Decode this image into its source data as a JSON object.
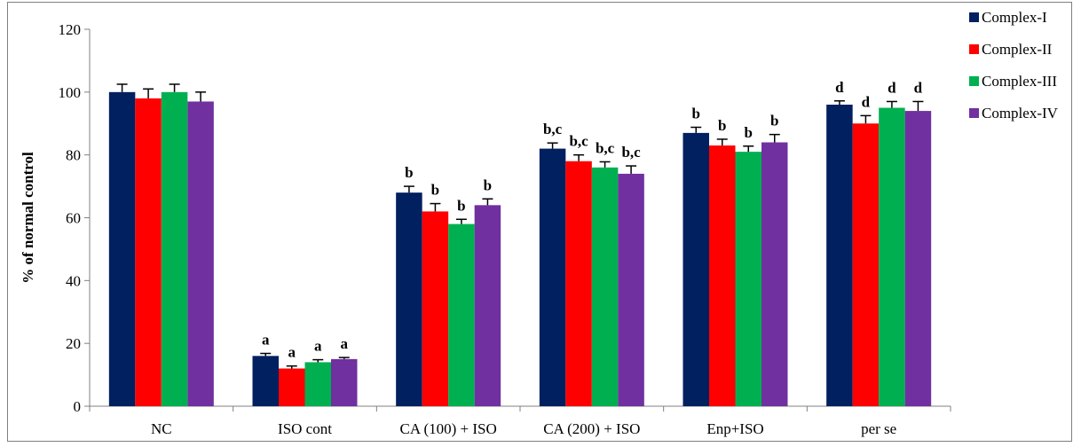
{
  "chart_data": {
    "type": "bar",
    "title": "",
    "xlabel": "",
    "ylabel": "% of normal control",
    "ylim": [
      0,
      120
    ],
    "yticks": [
      0,
      20,
      40,
      60,
      80,
      100,
      120
    ],
    "grid": false,
    "legend_position": "top-right",
    "categories": [
      "NC",
      "ISO cont",
      "CA (100) + ISO",
      "CA (200) + ISO",
      "Enp+ISO",
      "per se"
    ],
    "series": [
      {
        "name": "Complex-I",
        "color": "#002060",
        "values": [
          100,
          16,
          68,
          82,
          87,
          96
        ],
        "errors": [
          2.5,
          0.8,
          2.0,
          1.8,
          1.8,
          1.2
        ],
        "annotations": [
          "",
          "a",
          "b",
          "b,c",
          "b",
          "d"
        ]
      },
      {
        "name": "Complex-II",
        "color": "#ff0000",
        "values": [
          98,
          12,
          62,
          78,
          83,
          90
        ],
        "errors": [
          3.0,
          0.8,
          2.5,
          2.0,
          2.0,
          2.5
        ],
        "annotations": [
          "",
          "a",
          "b",
          "b,c",
          "b",
          "d"
        ]
      },
      {
        "name": "Complex-III",
        "color": "#00b050",
        "values": [
          100,
          14,
          58,
          76,
          81,
          95
        ],
        "errors": [
          2.5,
          0.8,
          1.5,
          1.8,
          1.8,
          2.0
        ],
        "annotations": [
          "",
          "a",
          "b",
          "b,c",
          "b",
          "d"
        ]
      },
      {
        "name": "Complex-IV",
        "color": "#7030a0",
        "values": [
          97,
          15,
          64,
          74,
          84,
          94
        ],
        "errors": [
          3.0,
          0.5,
          2.0,
          2.5,
          2.5,
          3.0
        ],
        "annotations": [
          "",
          "a",
          "b",
          "b,c",
          "b",
          "d"
        ]
      }
    ]
  }
}
